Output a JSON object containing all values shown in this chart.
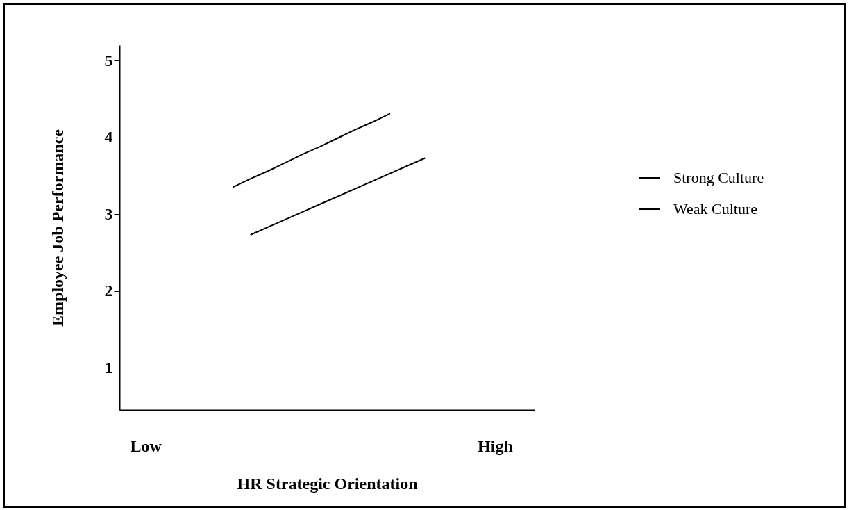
{
  "chart_data": {
    "type": "line",
    "xlabel": "HR Strategic Orientation",
    "ylabel": "Employee Job Performance",
    "categories": [
      "Low",
      null,
      null,
      null,
      null,
      null,
      null,
      null,
      null,
      null,
      null,
      null,
      null,
      null,
      null,
      null,
      null,
      null,
      null,
      null,
      "High"
    ],
    "ylim": [
      0.45,
      5.2
    ],
    "yticks": [
      1,
      2,
      3,
      4,
      5
    ],
    "legend": "right",
    "series": [
      {
        "name": "Strong Culture",
        "color": "#000000",
        "values": [
          null,
          null,
          null,
          null,
          null,
          3.35,
          3.46,
          3.56,
          3.67,
          3.78,
          3.88,
          3.99,
          4.1,
          4.2,
          4.31,
          null,
          null,
          null,
          null,
          null,
          null
        ]
      },
      {
        "name": "Weak Culture",
        "color": "#000000",
        "values": [
          null,
          null,
          null,
          null,
          null,
          null,
          2.73,
          2.83,
          2.93,
          3.03,
          3.13,
          3.23,
          3.33,
          3.43,
          3.53,
          3.63,
          3.73,
          null,
          null,
          null,
          null
        ]
      }
    ]
  }
}
